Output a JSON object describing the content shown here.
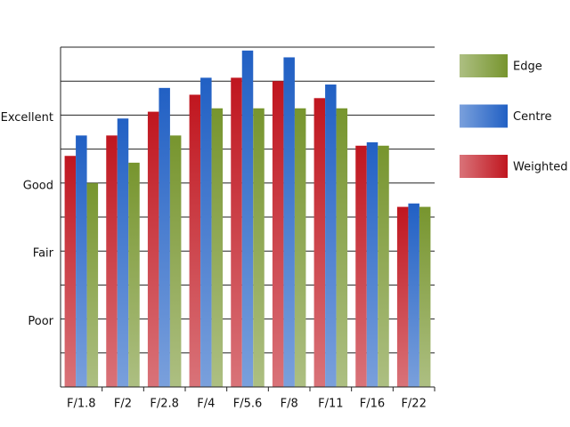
{
  "chart_data": {
    "type": "bar",
    "categories": [
      "F/1.8",
      "F/2",
      "F/2.8",
      "F/4",
      "F/5.6",
      "F/8",
      "F/11",
      "F/16",
      "F/22"
    ],
    "series": [
      {
        "name": "Weighted",
        "color": "#c0161f",
        "values": [
          6.8,
          7.4,
          8.1,
          8.6,
          9.1,
          9.0,
          8.5,
          7.1,
          5.3
        ]
      },
      {
        "name": "Centre",
        "color": "#2160c4",
        "values": [
          7.4,
          7.9,
          8.8,
          9.1,
          9.9,
          9.7,
          8.9,
          7.2,
          5.4
        ]
      },
      {
        "name": "Edge",
        "color": "#77952e",
        "values": [
          6.0,
          6.6,
          7.4,
          8.2,
          8.2,
          8.2,
          8.2,
          7.1,
          5.3
        ]
      }
    ],
    "ylim": [
      0,
      10
    ],
    "yticks": [
      {
        "value": 2,
        "label": "Poor"
      },
      {
        "value": 4,
        "label": "Fair"
      },
      {
        "value": 6,
        "label": "Good"
      },
      {
        "value": 8,
        "label": "Excellent"
      }
    ],
    "minor_yticks": [
      1,
      3,
      5,
      7,
      9,
      10
    ],
    "grid": true
  }
}
